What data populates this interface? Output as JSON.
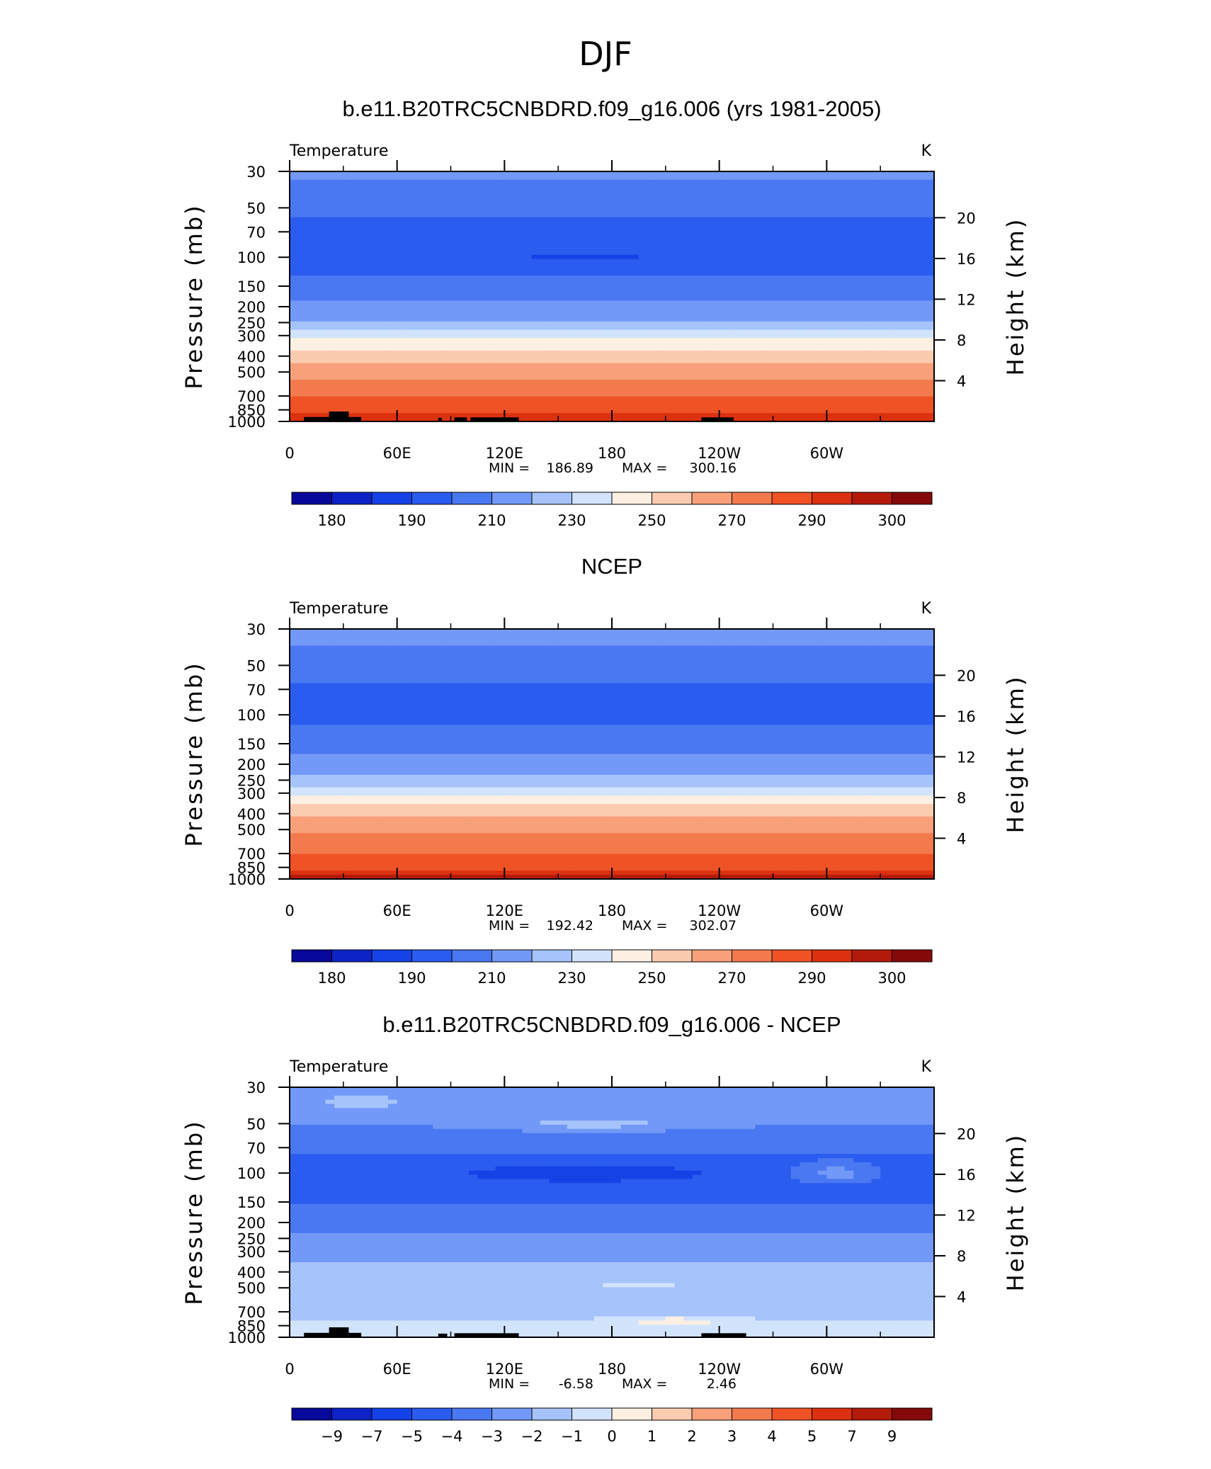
{
  "figure": {
    "title": "DJF",
    "palette": [
      "#08089a",
      "#0d23c7",
      "#1542e6",
      "#2a5cf0",
      "#4a78f2",
      "#7299f7",
      "#a6c3fb",
      "#d2e3fc",
      "#fdf0e3",
      "#fbcbb0",
      "#f7a07a",
      "#f37a4d",
      "#ef5225",
      "#dc3110",
      "#b41a0b",
      "#860909"
    ],
    "land_color": "#000000"
  },
  "chart_data": [
    {
      "type": "heatmap",
      "title": "b.e11.B20TRC5CNBDRD.f09_g16.006 (yrs 1981-2005)",
      "left_label": "Temperature",
      "right_label": "K",
      "ylabel": "Pressure  (mb)",
      "ylabel_right": "Height  (km)",
      "x_ticks": [
        "0",
        "60E",
        "120E",
        "180",
        "120W",
        "60W"
      ],
      "x_tick_values": [
        0,
        60,
        120,
        180,
        240,
        300
      ],
      "xlim": [
        0,
        360
      ],
      "p_ticks": [
        "30",
        "50",
        "70",
        "100",
        "150",
        "200",
        "250",
        "300",
        "400",
        "500",
        "700",
        "850",
        "1000"
      ],
      "p_tick_values": [
        30,
        50,
        70,
        100,
        150,
        200,
        250,
        300,
        400,
        500,
        700,
        850,
        1000
      ],
      "ylim": [
        1000,
        30
      ],
      "log_scale": true,
      "h_ticks": [
        "20",
        "16",
        "12",
        "8",
        "4"
      ],
      "h_tick_values": [
        20,
        16,
        12,
        8,
        4
      ],
      "min_label": "MIN = ",
      "max_label": "MAX = ",
      "min": "186.89",
      "max": "300.16",
      "colorbar_labels": [
        "180",
        "190",
        "210",
        "230",
        "250",
        "270",
        "290",
        "300"
      ],
      "contour_levels": [
        180,
        185,
        190,
        200,
        210,
        220,
        230,
        240,
        250,
        260,
        270,
        280,
        290,
        295,
        300
      ],
      "profile": {
        "pressure": [
          30,
          40,
          50,
          70,
          100,
          150,
          200,
          250,
          300,
          350,
          400,
          500,
          600,
          700,
          850,
          925,
          1000
        ],
        "value": [
          213,
          205,
          202,
          197,
          196,
          203,
          212,
          222,
          236,
          248,
          256,
          266,
          273,
          279,
          286,
          291,
          295
        ]
      },
      "anomalies": [
        {
          "lon": 165,
          "p": 100,
          "dlon": 58,
          "dlogp": 0.04,
          "amp": -8
        }
      ],
      "land": [
        [
          8,
          24,
          940
        ],
        [
          22,
          33,
          870
        ],
        [
          33,
          40,
          940
        ],
        [
          83,
          85,
          950
        ],
        [
          92,
          99,
          945
        ],
        [
          101,
          128,
          945
        ],
        [
          230,
          248,
          945
        ]
      ]
    },
    {
      "type": "heatmap",
      "title": "NCEP",
      "left_label": "Temperature",
      "right_label": "K",
      "ylabel": "Pressure  (mb)",
      "ylabel_right": "Height  (km)",
      "x_ticks": [
        "0",
        "60E",
        "120E",
        "180",
        "120W",
        "60W"
      ],
      "x_tick_values": [
        0,
        60,
        120,
        180,
        240,
        300
      ],
      "xlim": [
        0,
        360
      ],
      "p_ticks": [
        "30",
        "50",
        "70",
        "100",
        "150",
        "200",
        "250",
        "300",
        "400",
        "500",
        "700",
        "850",
        "1000"
      ],
      "p_tick_values": [
        30,
        50,
        70,
        100,
        150,
        200,
        250,
        300,
        400,
        500,
        700,
        850,
        1000
      ],
      "ylim": [
        1000,
        30
      ],
      "log_scale": true,
      "h_ticks": [
        "20",
        "16",
        "12",
        "8",
        "4"
      ],
      "h_tick_values": [
        20,
        16,
        12,
        8,
        4
      ],
      "min_label": "MIN = ",
      "max_label": "MAX = ",
      "min": "192.42",
      "max": "302.07",
      "colorbar_labels": [
        "180",
        "190",
        "210",
        "230",
        "250",
        "270",
        "290",
        "300"
      ],
      "contour_levels": [
        180,
        185,
        190,
        200,
        210,
        220,
        230,
        240,
        250,
        260,
        270,
        280,
        290,
        295,
        300
      ],
      "profile": {
        "pressure": [
          30,
          40,
          50,
          70,
          100,
          150,
          200,
          250,
          300,
          350,
          400,
          500,
          600,
          700,
          850,
          925,
          1000
        ],
        "value": [
          216,
          208,
          204,
          199,
          198,
          205,
          214,
          224,
          238,
          249,
          257,
          267,
          274,
          280,
          287,
          292,
          297
        ]
      },
      "anomalies": [],
      "land": []
    },
    {
      "type": "heatmap",
      "title": "b.e11.B20TRC5CNBDRD.f09_g16.006 - NCEP",
      "left_label": "Temperature",
      "right_label": "K",
      "ylabel": "Pressure  (mb)",
      "ylabel_right": "Height  (km)",
      "x_ticks": [
        "0",
        "60E",
        "120E",
        "180",
        "120W",
        "60W"
      ],
      "x_tick_values": [
        0,
        60,
        120,
        180,
        240,
        300
      ],
      "xlim": [
        0,
        360
      ],
      "p_ticks": [
        "30",
        "50",
        "70",
        "100",
        "150",
        "200",
        "250",
        "300",
        "400",
        "500",
        "700",
        "850",
        "1000"
      ],
      "p_tick_values": [
        30,
        50,
        70,
        100,
        150,
        200,
        250,
        300,
        400,
        500,
        700,
        850,
        1000
      ],
      "ylim": [
        1000,
        30
      ],
      "log_scale": true,
      "h_ticks": [
        "20",
        "16",
        "12",
        "8",
        "4"
      ],
      "h_tick_values": [
        20,
        16,
        12,
        8,
        4
      ],
      "min_label": "MIN = ",
      "max_label": "MAX = ",
      "min": "-6.58",
      "max": "2.46",
      "colorbar_labels": [
        "−9",
        "−7",
        "−5",
        "−4",
        "−3",
        "−2",
        "−1",
        "0",
        "1",
        "2",
        "3",
        "4",
        "5",
        "7",
        "9"
      ],
      "contour_levels": [
        -9,
        -7,
        -5,
        -4,
        -3,
        -2,
        -1,
        0,
        1,
        2,
        3,
        4,
        5,
        7,
        9
      ],
      "profile": {
        "pressure": [
          30,
          40,
          50,
          70,
          100,
          150,
          200,
          250,
          300,
          400,
          500,
          700,
          850,
          1000
        ],
        "value": [
          -2.8,
          -2.6,
          -2.9,
          -3.8,
          -4.5,
          -4.0,
          -3.4,
          -2.7,
          -2.3,
          -1.8,
          -1.6,
          -1.4,
          -0.8,
          -0.4
        ]
      },
      "anomalies": [
        {
          "lon": 165,
          "p": 100,
          "dlon": 60,
          "dlogp": 0.05,
          "amp": -1.8
        },
        {
          "lon": 170,
          "p": 50,
          "dlon": 45,
          "dlogp": 0.04,
          "amp": 1.4
        },
        {
          "lon": 305,
          "p": 100,
          "dlon": 22,
          "dlogp": 0.05,
          "amp": 2.0
        },
        {
          "lon": 195,
          "p": 480,
          "dlon": 30,
          "dlogp": 0.03,
          "amp": 0.9
        },
        {
          "lon": 215,
          "p": 800,
          "dlon": 30,
          "dlogp": 0.03,
          "amp": 1.6
        },
        {
          "lon": 40,
          "p": 36,
          "dlon": 22,
          "dlogp": 0.05,
          "amp": 1.4
        }
      ],
      "land": [
        [
          8,
          24,
          940
        ],
        [
          22,
          33,
          870
        ],
        [
          33,
          40,
          940
        ],
        [
          83,
          88,
          950
        ],
        [
          92,
          128,
          945
        ],
        [
          230,
          255,
          945
        ]
      ]
    }
  ]
}
